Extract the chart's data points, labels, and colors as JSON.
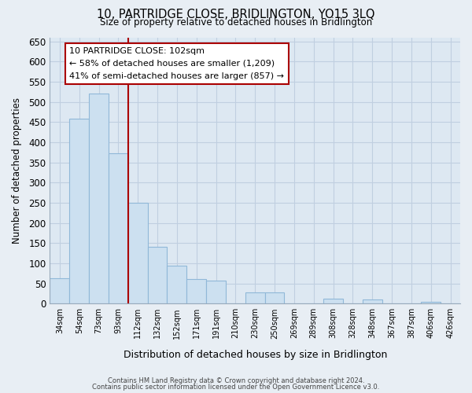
{
  "title": "10, PARTRIDGE CLOSE, BRIDLINGTON, YO15 3LQ",
  "subtitle": "Size of property relative to detached houses in Bridlington",
  "xlabel": "Distribution of detached houses by size in Bridlington",
  "ylabel": "Number of detached properties",
  "bar_labels": [
    "34sqm",
    "54sqm",
    "73sqm",
    "93sqm",
    "112sqm",
    "132sqm",
    "152sqm",
    "171sqm",
    "191sqm",
    "210sqm",
    "230sqm",
    "250sqm",
    "269sqm",
    "289sqm",
    "308sqm",
    "328sqm",
    "348sqm",
    "367sqm",
    "387sqm",
    "406sqm",
    "426sqm"
  ],
  "bar_values": [
    63,
    458,
    521,
    372,
    250,
    141,
    95,
    62,
    58,
    0,
    28,
    28,
    0,
    0,
    12,
    0,
    10,
    0,
    0,
    4,
    0
  ],
  "bar_color": "#cce0f0",
  "bar_edge_color": "#90b8d8",
  "vline_x": 3.5,
  "vline_color": "#aa0000",
  "annotation_title": "10 PARTRIDGE CLOSE: 102sqm",
  "annotation_line1": "← 58% of detached houses are smaller (1,209)",
  "annotation_line2": "41% of semi-detached houses are larger (857) →",
  "annotation_box_color": "#ffffff",
  "annotation_box_edge_color": "#aa0000",
  "ylim": [
    0,
    660
  ],
  "yticks": [
    0,
    50,
    100,
    150,
    200,
    250,
    300,
    350,
    400,
    450,
    500,
    550,
    600,
    650
  ],
  "footer1": "Contains HM Land Registry data © Crown copyright and database right 2024.",
  "footer2": "Contains public sector information licensed under the Open Government Licence v3.0.",
  "bg_color": "#e8eef4",
  "plot_bg_color": "#dde8f2",
  "grid_color": "#c0cfe0"
}
